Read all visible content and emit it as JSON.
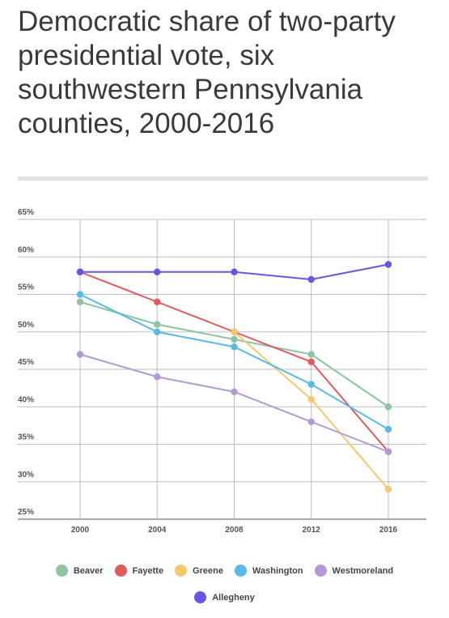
{
  "title": "Democratic share of two-party presidential vote, six southwestern Pennsylvania counties, 2000-2016",
  "chart_data": {
    "type": "line",
    "title": "Democratic share of two-party presidential vote, six southwestern Pennsylvania counties, 2000-2016",
    "x": [
      "2000",
      "2004",
      "2008",
      "2012",
      "2016"
    ],
    "ylim": [
      25,
      65
    ],
    "yticks": [
      25,
      30,
      35,
      40,
      45,
      50,
      55,
      60,
      65
    ],
    "ytick_labels": [
      "25%",
      "30%",
      "35%",
      "40%",
      "45%",
      "50%",
      "55%",
      "60%",
      "65%"
    ],
    "grid": true,
    "legend_position": "bottom",
    "series": [
      {
        "name": "Beaver",
        "color": "#8dc5a0",
        "values": [
          54,
          51,
          49,
          47,
          40
        ]
      },
      {
        "name": "Fayette",
        "color": "#e05b5b",
        "values": [
          58,
          54,
          50,
          46,
          34
        ]
      },
      {
        "name": "Greene",
        "color": "#f5c96b",
        "values": [
          null,
          null,
          50,
          41,
          29
        ]
      },
      {
        "name": "Washington",
        "color": "#5ab9e6",
        "values": [
          55,
          50,
          48,
          43,
          37
        ]
      },
      {
        "name": "Westmoreland",
        "color": "#b39ad6",
        "values": [
          47,
          44,
          42,
          38,
          34
        ]
      },
      {
        "name": "Allegheny",
        "color": "#6b55e0",
        "values": [
          58,
          58,
          58,
          57,
          59
        ]
      }
    ]
  }
}
